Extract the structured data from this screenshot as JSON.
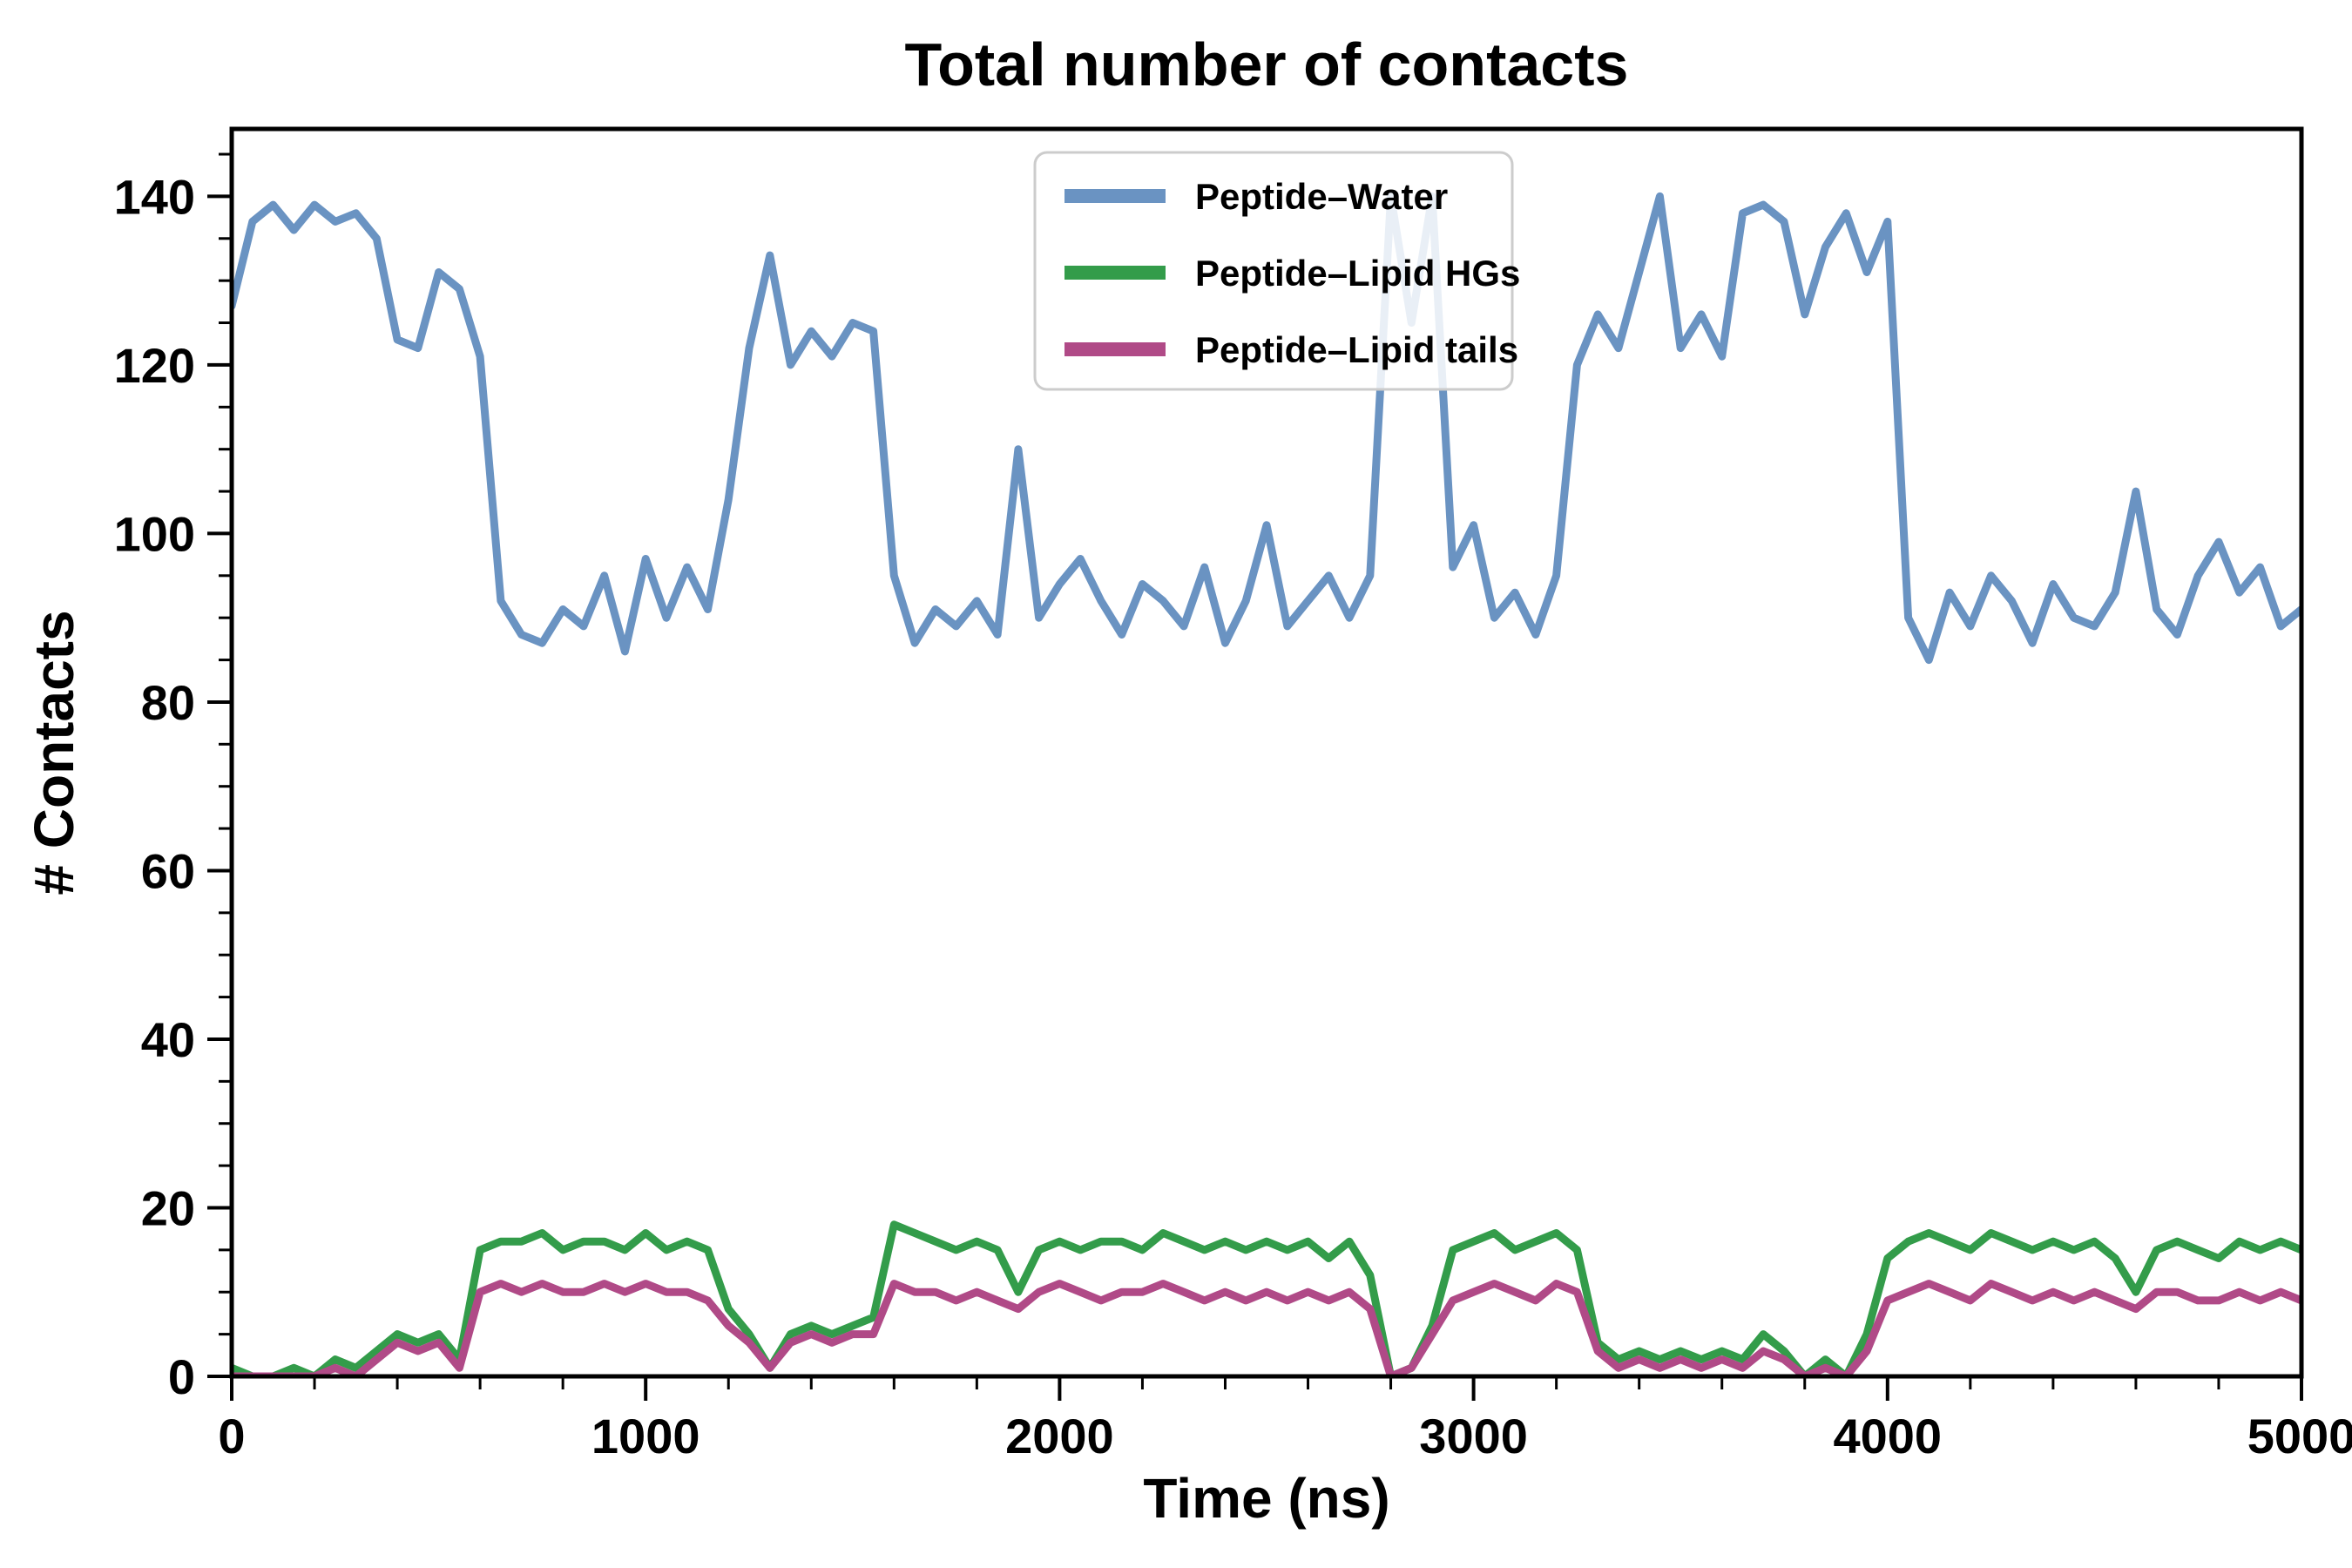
{
  "chart_data": {
    "type": "line",
    "title": "Total number of contacts",
    "xlabel": "Time (ns)",
    "ylabel": "# Contacts",
    "xlim": [
      0,
      5000
    ],
    "ylim": [
      0,
      148
    ],
    "xticks": [
      0,
      1000,
      2000,
      3000,
      4000,
      5000
    ],
    "yticks": [
      0,
      20,
      40,
      60,
      80,
      100,
      120,
      140
    ],
    "x_minor_step": 200,
    "y_minor_step": 5,
    "grid": false,
    "legend_position": "top-center",
    "legend_frame_color": "#cccccc",
    "background_color": "#ffffff",
    "axis_color": "#000000",
    "x": [
      0,
      50,
      100,
      150,
      200,
      250,
      300,
      350,
      400,
      450,
      500,
      550,
      600,
      650,
      700,
      750,
      800,
      850,
      900,
      950,
      1000,
      1050,
      1100,
      1150,
      1200,
      1250,
      1300,
      1350,
      1400,
      1450,
      1500,
      1550,
      1600,
      1650,
      1700,
      1750,
      1800,
      1850,
      1900,
      1950,
      2000,
      2050,
      2100,
      2150,
      2200,
      2250,
      2300,
      2350,
      2400,
      2450,
      2500,
      2550,
      2600,
      2650,
      2700,
      2750,
      2800,
      2850,
      2900,
      2950,
      3000,
      3050,
      3100,
      3150,
      3200,
      3250,
      3300,
      3350,
      3400,
      3450,
      3500,
      3550,
      3600,
      3650,
      3700,
      3750,
      3800,
      3850,
      3900,
      3950,
      4000,
      4050,
      4100,
      4150,
      4200,
      4250,
      4300,
      4350,
      4400,
      4450,
      4500,
      4550,
      4600,
      4650,
      4700,
      4750,
      4800,
      4850,
      4900,
      4950,
      5000
    ],
    "series": [
      {
        "name": "Peptide–Water",
        "color": "#6a93c2",
        "values": [
          127,
          137,
          139,
          136,
          139,
          137,
          138,
          135,
          123,
          122,
          131,
          129,
          121,
          92,
          88,
          87,
          91,
          89,
          95,
          86,
          97,
          90,
          96,
          91,
          104,
          122,
          133,
          120,
          124,
          121,
          125,
          124,
          95,
          87,
          91,
          89,
          92,
          88,
          110,
          90,
          94,
          97,
          92,
          88,
          94,
          92,
          89,
          96,
          87,
          92,
          101,
          89,
          92,
          95,
          90,
          95,
          140,
          125,
          140,
          96,
          101,
          90,
          93,
          88,
          95,
          120,
          126,
          122,
          131,
          140,
          122,
          126,
          121,
          138,
          139,
          137,
          126,
          134,
          138,
          131,
          137,
          90,
          85,
          93,
          89,
          95,
          92,
          87,
          94,
          90,
          89,
          93,
          105,
          91,
          88,
          95,
          99,
          93,
          96,
          89,
          91
        ]
      },
      {
        "name": "Peptide–Lipid HGs",
        "color": "#339c4a",
        "values": [
          1,
          0,
          0,
          1,
          0,
          2,
          1,
          3,
          5,
          4,
          5,
          2,
          15,
          16,
          16,
          17,
          15,
          16,
          16,
          15,
          17,
          15,
          16,
          15,
          8,
          5,
          1,
          5,
          6,
          5,
          6,
          7,
          18,
          17,
          16,
          15,
          16,
          15,
          10,
          15,
          16,
          15,
          16,
          16,
          15,
          17,
          16,
          15,
          16,
          15,
          16,
          15,
          16,
          14,
          16,
          12,
          0,
          1,
          6,
          15,
          16,
          17,
          15,
          16,
          17,
          15,
          4,
          2,
          3,
          2,
          3,
          2,
          3,
          2,
          5,
          3,
          0,
          2,
          0,
          5,
          14,
          16,
          17,
          16,
          15,
          17,
          16,
          15,
          16,
          15,
          16,
          14,
          10,
          15,
          16,
          15,
          14,
          16,
          15,
          16,
          15
        ]
      },
      {
        "name": "Peptide–Lipid tails",
        "color": "#b04a87",
        "values": [
          0,
          0,
          0,
          0,
          0,
          1,
          0,
          2,
          4,
          3,
          4,
          1,
          10,
          11,
          10,
          11,
          10,
          10,
          11,
          10,
          11,
          10,
          10,
          9,
          6,
          4,
          1,
          4,
          5,
          4,
          5,
          5,
          11,
          10,
          10,
          9,
          10,
          9,
          8,
          10,
          11,
          10,
          9,
          10,
          10,
          11,
          10,
          9,
          10,
          9,
          10,
          9,
          10,
          9,
          10,
          8,
          0,
          1,
          5,
          9,
          10,
          11,
          10,
          9,
          11,
          10,
          3,
          1,
          2,
          1,
          2,
          1,
          2,
          1,
          3,
          2,
          0,
          1,
          0,
          3,
          9,
          10,
          11,
          10,
          9,
          11,
          10,
          9,
          10,
          9,
          10,
          9,
          8,
          10,
          10,
          9,
          9,
          10,
          9,
          10,
          9
        ]
      }
    ]
  }
}
